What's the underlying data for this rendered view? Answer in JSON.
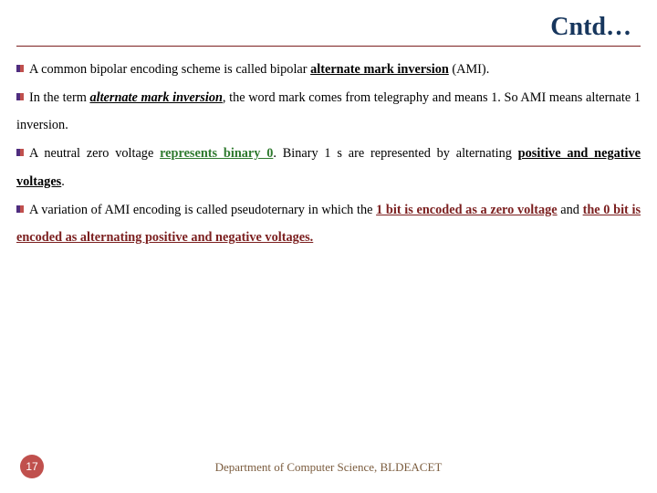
{
  "title": "Cntd…",
  "bullet_colors": {
    "left": "#4f2d7f",
    "right": "#c0504d"
  },
  "hr_color": "#7b1f1f",
  "paragraphs": [
    {
      "runs": [
        {
          "t": "A common bipolar encoding scheme is called bipolar "
        },
        {
          "t": "alternate mark inversion",
          "cls": "u b"
        },
        {
          "t": " (AMI)."
        }
      ]
    },
    {
      "runs": [
        {
          "t": "In the term "
        },
        {
          "t": "alternate mark inversion",
          "cls": "u bi"
        },
        {
          "t": ", the word mark comes from telegraphy and means 1. So AMI means alternate 1 inversion."
        }
      ],
      "nobullet_after_first_line": false
    },
    {
      "runs": [
        {
          "t": "A neutral zero voltage "
        },
        {
          "t": "represents binary 0",
          "cls": "u b green"
        },
        {
          "t": ". Binary 1 s are represented by alternating "
        },
        {
          "t": "positive and negative voltages",
          "cls": "u b"
        },
        {
          "t": "."
        }
      ]
    },
    {
      "runs": [
        {
          "t": "A variation of AMI encoding is called pseudoternary in which the "
        },
        {
          "t": "1 bit is encoded as a zero voltage",
          "cls": "u b brown"
        },
        {
          "t": " and "
        },
        {
          "t": "the 0 bit is encoded as alternating positive and negative voltages.",
          "cls": "u b brown",
          "wrap_underline_gap": true
        }
      ]
    }
  ],
  "footer": {
    "page": "17",
    "dept": "Department of Computer Science, BLDEACET"
  }
}
